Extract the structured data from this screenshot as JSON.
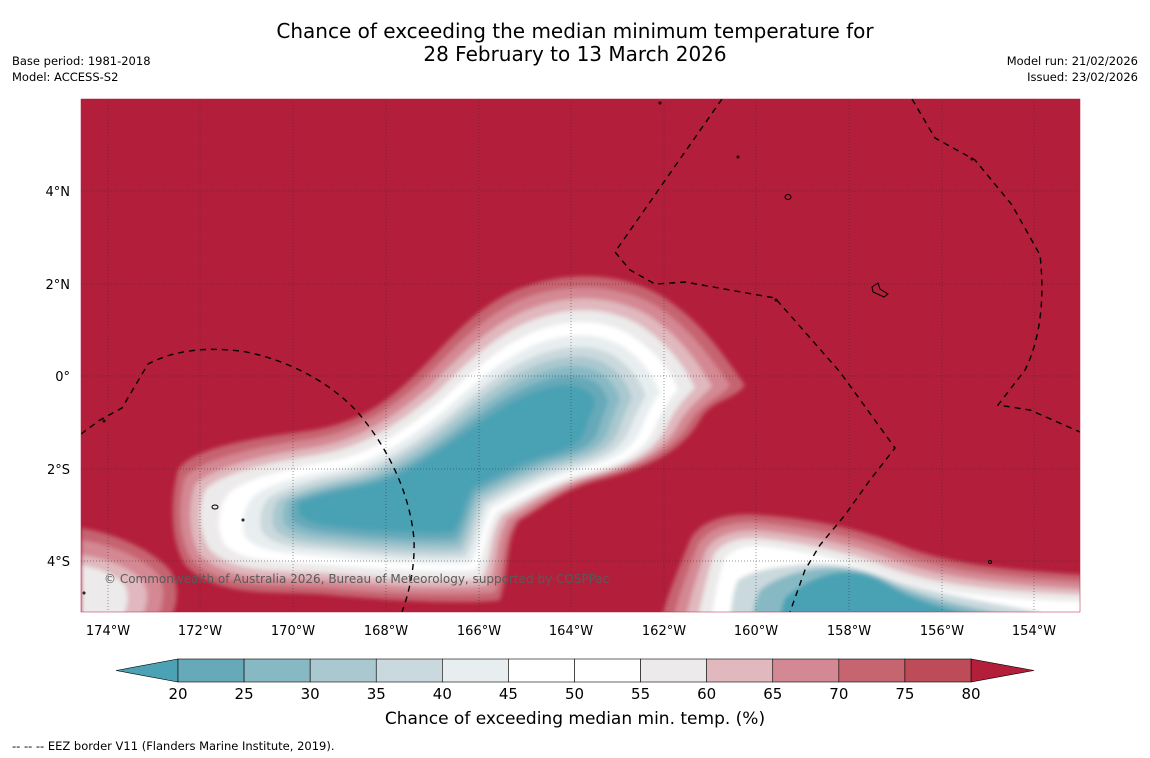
{
  "header": {
    "title_line1": "Chance of exceeding the median minimum temperature for",
    "title_line2": "28 February to 13 March 2026",
    "base_period": "Base period: 1981-2018",
    "model": "Model: ACCESS-S2",
    "model_run": "Model run: 21/02/2026",
    "issued": "Issued: 23/02/2026"
  },
  "map": {
    "lon_labels": [
      "174°W",
      "172°W",
      "170°W",
      "168°W",
      "166°W",
      "164°W",
      "162°W",
      "160°W",
      "158°W",
      "156°W",
      "154°W"
    ],
    "lat_labels": [
      "4°N",
      "2°N",
      "0°",
      "2°S",
      "4°S"
    ],
    "watermark": "© Commonwealth of Australia 2026, Bureau of Meteorology, supported by COSPPac",
    "colors": {
      "above_80": "#b31e3a",
      "below_20": "#4aa2b4"
    }
  },
  "colorbar": {
    "ticks": [
      "20",
      "25",
      "30",
      "35",
      "40",
      "45",
      "50",
      "55",
      "60",
      "65",
      "70",
      "75",
      "80"
    ],
    "colors": [
      "#66a9b9",
      "#87b9c5",
      "#a9c8cf",
      "#cad9dd",
      "#e8eef0",
      "#ffffff",
      "#ffffff",
      "#eceaea",
      "#e0b8be",
      "#d48893",
      "#c66470",
      "#bd4c58"
    ],
    "under_color": "#4aa2b4",
    "over_color": "#b31e3a",
    "title": "Chance of exceeding median min. temp. (%)"
  },
  "footer": {
    "eez_note": "--  --  -- EEZ border V11 (Flanders Marine Institute, 2019)."
  }
}
